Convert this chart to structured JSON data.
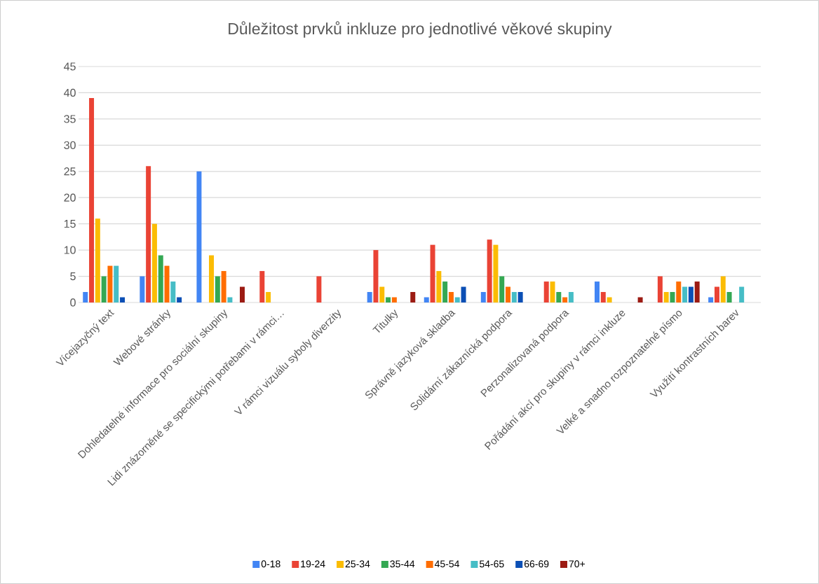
{
  "chart_data": {
    "type": "bar",
    "title": "Důležitost prvků inkluze pro jednotlivé věkové skupiny",
    "categories": [
      "Vícejazyčný text",
      "Webové stránky",
      "Dohledatelné informace pro sociální skupiny",
      "Lidi znázorněné se specifickými potřebami v rámci…",
      "V rámci vizuálu syboly diverzity",
      "Titulky",
      "Správně jazyková skladba",
      "Solidární zákaznícká podpora",
      "Perzonalizovaná podpora",
      "Pořádání akcí pro skupiny v rámci inkluze",
      "Velké a snadno rozpoznatelné písmo",
      "Využití kontrastních barev"
    ],
    "series": [
      {
        "name": "0-18",
        "color": "#4285f4",
        "values": [
          2,
          5,
          25,
          null,
          null,
          2,
          1,
          2,
          null,
          4,
          null,
          1
        ]
      },
      {
        "name": "19-24",
        "color": "#ea4335",
        "values": [
          39,
          26,
          null,
          6,
          5,
          10,
          11,
          12,
          4,
          2,
          5,
          3
        ]
      },
      {
        "name": "25-34",
        "color": "#fbbc04",
        "values": [
          16,
          15,
          9,
          2,
          null,
          3,
          6,
          11,
          4,
          1,
          2,
          5
        ]
      },
      {
        "name": "35-44",
        "color": "#34a853",
        "values": [
          5,
          9,
          5,
          null,
          null,
          1,
          4,
          5,
          2,
          null,
          2,
          2
        ]
      },
      {
        "name": "45-54",
        "color": "#ff6d01",
        "values": [
          7,
          7,
          6,
          null,
          null,
          1,
          2,
          3,
          1,
          null,
          4,
          null
        ]
      },
      {
        "name": "54-65",
        "color": "#46bdc6",
        "values": [
          7,
          4,
          1,
          null,
          null,
          null,
          1,
          2,
          2,
          null,
          3,
          3
        ]
      },
      {
        "name": "66-69",
        "color": "#0b4fb5",
        "values": [
          1,
          1,
          null,
          null,
          null,
          null,
          3,
          2,
          null,
          null,
          3,
          null
        ]
      },
      {
        "name": "70+",
        "color": "#9c1b13",
        "values": [
          null,
          null,
          3,
          null,
          null,
          2,
          null,
          null,
          null,
          1,
          4,
          null
        ]
      }
    ],
    "ylim": [
      0,
      45
    ],
    "yticks": [
      0,
      5,
      10,
      15,
      20,
      25,
      30,
      35,
      40,
      45
    ],
    "grid": "y",
    "legend": "bottom"
  }
}
